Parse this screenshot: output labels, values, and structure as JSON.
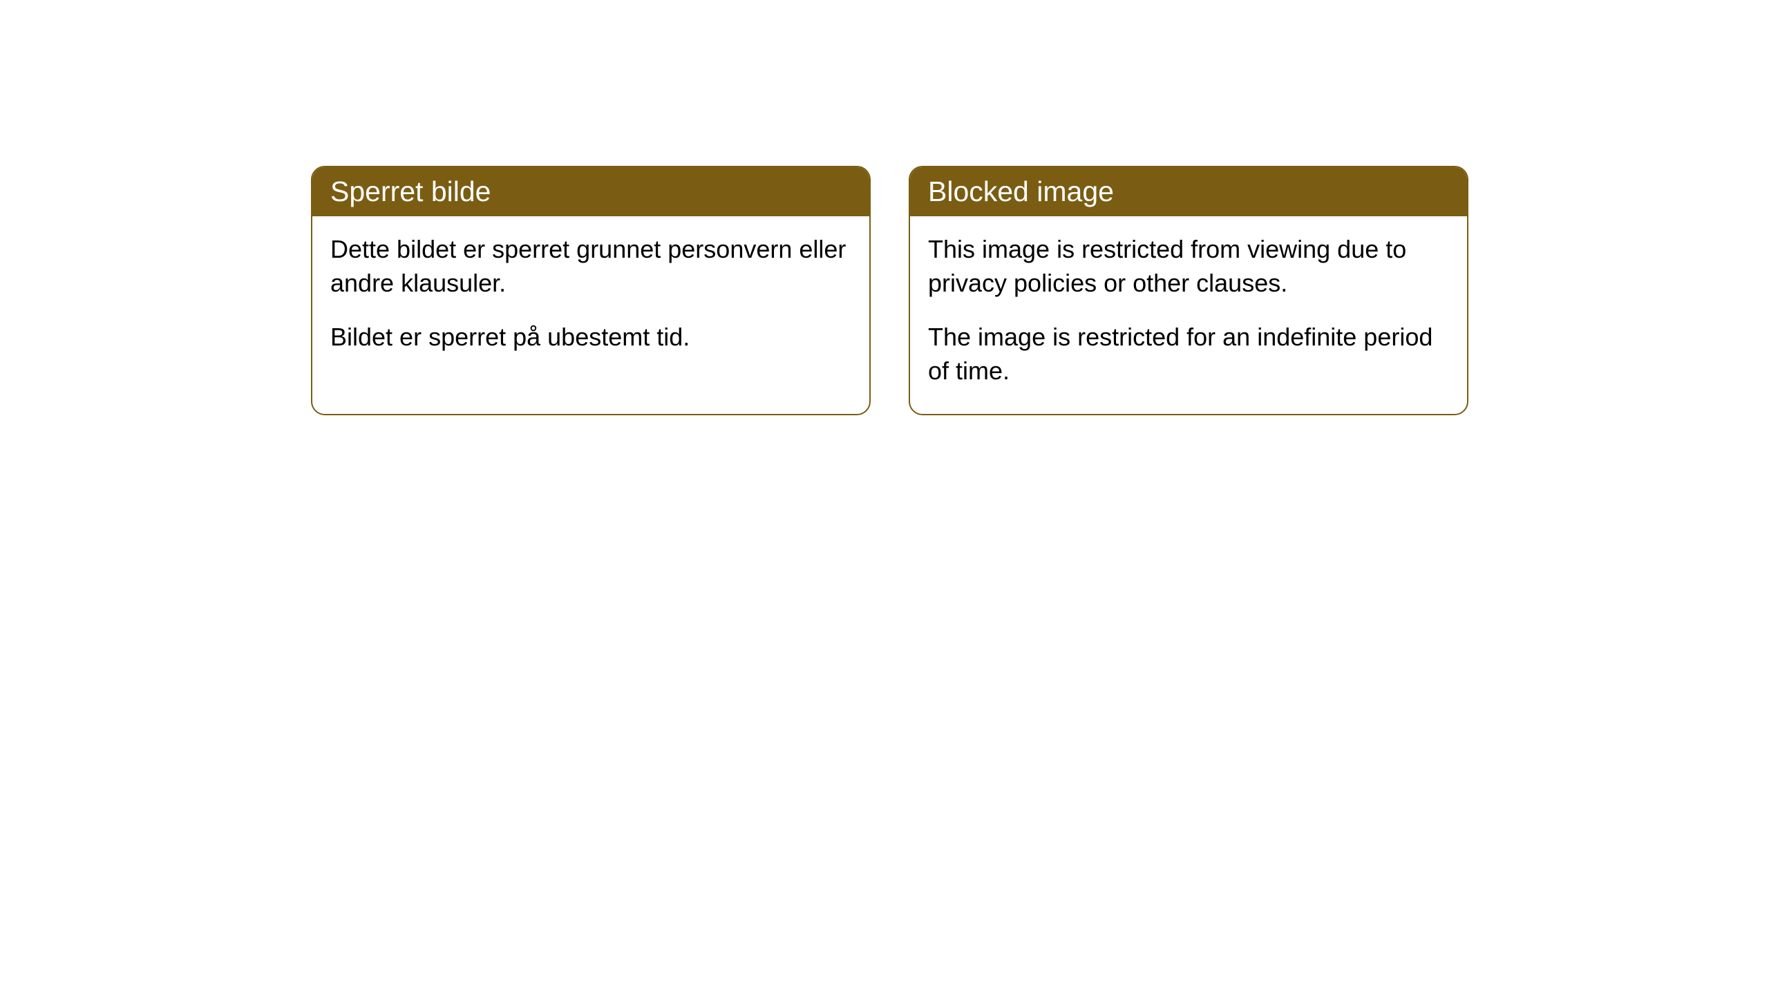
{
  "cards": [
    {
      "title": "Sperret bilde",
      "paragraph1": "Dette bildet er sperret grunnet personvern eller andre klausuler.",
      "paragraph2": "Bildet er sperret på ubestemt tid."
    },
    {
      "title": "Blocked image",
      "paragraph1": "This image is restricted from viewing due to privacy policies or other clauses.",
      "paragraph2": "The image is restricted for an indefinite period of time."
    }
  ],
  "styles": {
    "header_background": "#7a5d13",
    "header_text_color": "#ffffff",
    "card_border_color": "#7a5d13",
    "card_background": "#ffffff",
    "body_text_color": "#000000",
    "page_background": "#ffffff",
    "border_radius": 20,
    "header_fontsize": 41,
    "body_fontsize": 36
  }
}
